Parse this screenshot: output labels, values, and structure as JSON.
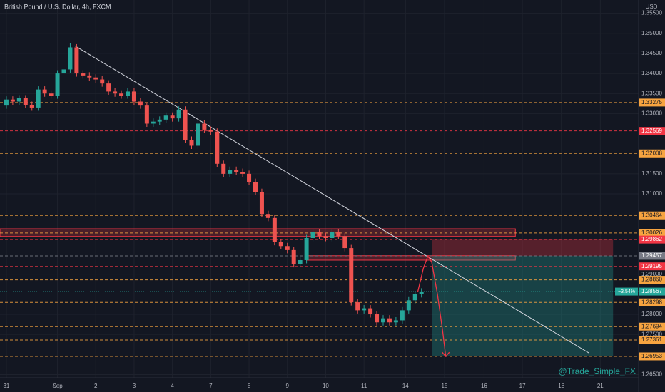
{
  "chart_data": {
    "type": "candlestick",
    "title": "British Pound / U.S. Dollar, 4h, FXCM",
    "currency": "USD",
    "watermark": "@Trade_Simple_FX",
    "up_color": "#26a69a",
    "down_color": "#ef5350",
    "xlim": [
      -1,
      99
    ],
    "ylim": [
      1.2642,
      1.3583
    ],
    "xticks": [
      {
        "value": 0,
        "label": "31"
      },
      {
        "value": 8,
        "label": "Sep"
      },
      {
        "value": 14,
        "label": "2"
      },
      {
        "value": 20,
        "label": "3"
      },
      {
        "value": 26,
        "label": "4"
      },
      {
        "value": 32,
        "label": "7"
      },
      {
        "value": 38,
        "label": "8"
      },
      {
        "value": 44,
        "label": "9"
      },
      {
        "value": 50,
        "label": "10"
      },
      {
        "value": 56,
        "label": "11"
      },
      {
        "value": 62.5,
        "label": "14"
      },
      {
        "value": 68.6,
        "label": "15"
      },
      {
        "value": 74.8,
        "label": "16"
      },
      {
        "value": 80.8,
        "label": "17"
      },
      {
        "value": 86.9,
        "label": "18"
      },
      {
        "value": 93,
        "label": "21"
      }
    ],
    "yticks": [
      {
        "value": 1.355,
        "label": "1.35500"
      },
      {
        "value": 1.35,
        "label": "1.35000"
      },
      {
        "value": 1.345,
        "label": "1.34500"
      },
      {
        "value": 1.34,
        "label": "1.34000"
      },
      {
        "value": 1.335,
        "label": "1.33500"
      },
      {
        "value": 1.33,
        "label": "1.33000"
      },
      {
        "value": 1.315,
        "label": "1.31500"
      },
      {
        "value": 1.31,
        "label": "1.31000"
      },
      {
        "value": 1.29,
        "label": "1.29000"
      },
      {
        "value": 1.28,
        "label": "1.28000"
      },
      {
        "value": 1.275,
        "label": "1.27500"
      },
      {
        "value": 1.265,
        "label": "1.26500"
      }
    ],
    "grid": true,
    "open": [
      1.332,
      1.3335,
      1.333,
      1.3338,
      1.3322,
      1.3315,
      1.336,
      1.335,
      1.3345,
      1.34,
      1.341,
      1.3465,
      1.34,
      1.3395,
      1.339,
      1.3385,
      1.3375,
      1.3355,
      1.335,
      1.3345,
      1.3355,
      1.333,
      1.332,
      1.3275,
      1.328,
      1.3285,
      1.3295,
      1.3288,
      1.331,
      1.3235,
      1.322,
      1.3275,
      1.326,
      1.3255,
      1.3175,
      1.315,
      1.316,
      1.3155,
      1.315,
      1.313,
      1.3105,
      1.305,
      1.304,
      1.298,
      1.297,
      1.296,
      1.2925,
      1.2935,
      1.299,
      1.3005,
      1.2995,
      1.299,
      1.3005,
      1.2995,
      1.2965,
      1.283,
      1.281,
      1.2815,
      1.28,
      1.278,
      1.279,
      1.278,
      1.2785,
      1.281,
      1.2835,
      1.285
    ],
    "high": [
      1.3343,
      1.3343,
      1.3346,
      1.3346,
      1.333,
      1.3368,
      1.3368,
      1.3358,
      1.3408,
      1.3418,
      1.3475,
      1.3473,
      1.3408,
      1.3403,
      1.3398,
      1.3393,
      1.3383,
      1.3363,
      1.3358,
      1.3363,
      1.3363,
      1.3338,
      1.3328,
      1.3288,
      1.3293,
      1.3303,
      1.3303,
      1.3318,
      1.3318,
      1.3243,
      1.3283,
      1.3283,
      1.3268,
      1.3263,
      1.3183,
      1.3168,
      1.3168,
      1.3163,
      1.3158,
      1.3138,
      1.3113,
      1.3058,
      1.3048,
      1.2988,
      1.2978,
      1.2968,
      1.2943,
      1.2998,
      1.3013,
      1.3013,
      1.3003,
      1.3013,
      1.3013,
      1.3003,
      1.2973,
      1.2838,
      1.2823,
      1.2823,
      1.2808,
      1.2798,
      1.2798,
      1.2793,
      1.2818,
      1.2843,
      1.2858,
      1.2865
    ],
    "low": [
      1.3312,
      1.3322,
      1.3322,
      1.3314,
      1.3307,
      1.3307,
      1.3342,
      1.3337,
      1.3337,
      1.3392,
      1.3402,
      1.3392,
      1.3387,
      1.3382,
      1.3377,
      1.3367,
      1.3347,
      1.3342,
      1.3337,
      1.3337,
      1.3322,
      1.3312,
      1.3267,
      1.3267,
      1.3272,
      1.3277,
      1.328,
      1.328,
      1.3227,
      1.3212,
      1.3212,
      1.3252,
      1.3247,
      1.3167,
      1.3142,
      1.3142,
      1.3147,
      1.3142,
      1.3122,
      1.3097,
      1.3042,
      1.3032,
      1.2972,
      1.2962,
      1.2952,
      1.2917,
      1.2917,
      1.2927,
      1.2982,
      1.2987,
      1.2982,
      1.2982,
      1.2987,
      1.2957,
      1.2822,
      1.2802,
      1.2802,
      1.2792,
      1.2772,
      1.2772,
      1.2772,
      1.2772,
      1.2777,
      1.2802,
      1.2827,
      1.2842
    ],
    "close": [
      1.3335,
      1.333,
      1.3338,
      1.3322,
      1.3315,
      1.336,
      1.335,
      1.3345,
      1.34,
      1.341,
      1.3465,
      1.34,
      1.3395,
      1.339,
      1.3385,
      1.3375,
      1.3355,
      1.335,
      1.3345,
      1.3355,
      1.333,
      1.332,
      1.3275,
      1.328,
      1.3285,
      1.3295,
      1.3288,
      1.331,
      1.3235,
      1.322,
      1.3275,
      1.326,
      1.3255,
      1.3175,
      1.315,
      1.316,
      1.3155,
      1.315,
      1.313,
      1.3105,
      1.305,
      1.304,
      1.298,
      1.297,
      1.296,
      1.2925,
      1.2935,
      1.299,
      1.3005,
      1.2995,
      1.299,
      1.3005,
      1.2995,
      1.2965,
      1.283,
      1.281,
      1.2815,
      1.28,
      1.278,
      1.279,
      1.278,
      1.2785,
      1.281,
      1.2835,
      1.285,
      1.2857
    ],
    "levels": [
      {
        "value": 1.33275,
        "label": "1.33275",
        "color": "#f7a440"
      },
      {
        "value": 1.32569,
        "label": "1.32569",
        "color": "#f23645"
      },
      {
        "value": 1.32008,
        "label": "1.32008",
        "color": "#f7a440"
      },
      {
        "value": 1.30464,
        "label": "1.30464",
        "color": "#f7a440"
      },
      {
        "value": 1.30026,
        "label": "1.30026",
        "color": "#f7a440"
      },
      {
        "value": 1.29862,
        "label": "1.29862",
        "color": "#f23645"
      },
      {
        "value": 1.29457,
        "label": "1.29457",
        "color": "#787b86"
      },
      {
        "value": 1.29195,
        "label": "1.29195",
        "color": "#f23645"
      },
      {
        "value": 1.2886,
        "label": "1.28860",
        "color": "#f7a440"
      },
      {
        "value": 1.28298,
        "label": "1.28298",
        "color": "#f7a440"
      },
      {
        "value": 1.27694,
        "label": "1.27694",
        "color": "#f7a440"
      },
      {
        "value": 1.27361,
        "label": "1.27361",
        "color": "#f7a440"
      },
      {
        "value": 1.26953,
        "label": "1.26953",
        "color": "#f7a440"
      }
    ],
    "current_price": {
      "value": 1.28567,
      "label": "1.28567",
      "change": "−3.54%",
      "color": "#26a69a"
    },
    "zones": [
      {
        "x": [
          -1,
          79.7
        ],
        "y": [
          1.3013,
          1.2994
        ]
      },
      {
        "x": [
          47,
          79.7
        ],
        "y": [
          1.2946,
          1.2935
        ]
      }
    ],
    "trendline": {
      "x": [
        10.7,
        91.2
      ],
      "y": [
        1.3469,
        1.2704
      ]
    },
    "short_position": {
      "x": [
        66.6,
        95
      ],
      "entry": 1.29457,
      "stop": 1.2986,
      "target": 1.26953
    },
    "projection": {
      "x": [
        64.4,
        65.3,
        66,
        66.6,
        67.5,
        68.3,
        68.8
      ],
      "y": [
        1.2855,
        1.2915,
        1.2945,
        1.293,
        1.285,
        1.276,
        1.2695
      ]
    }
  }
}
